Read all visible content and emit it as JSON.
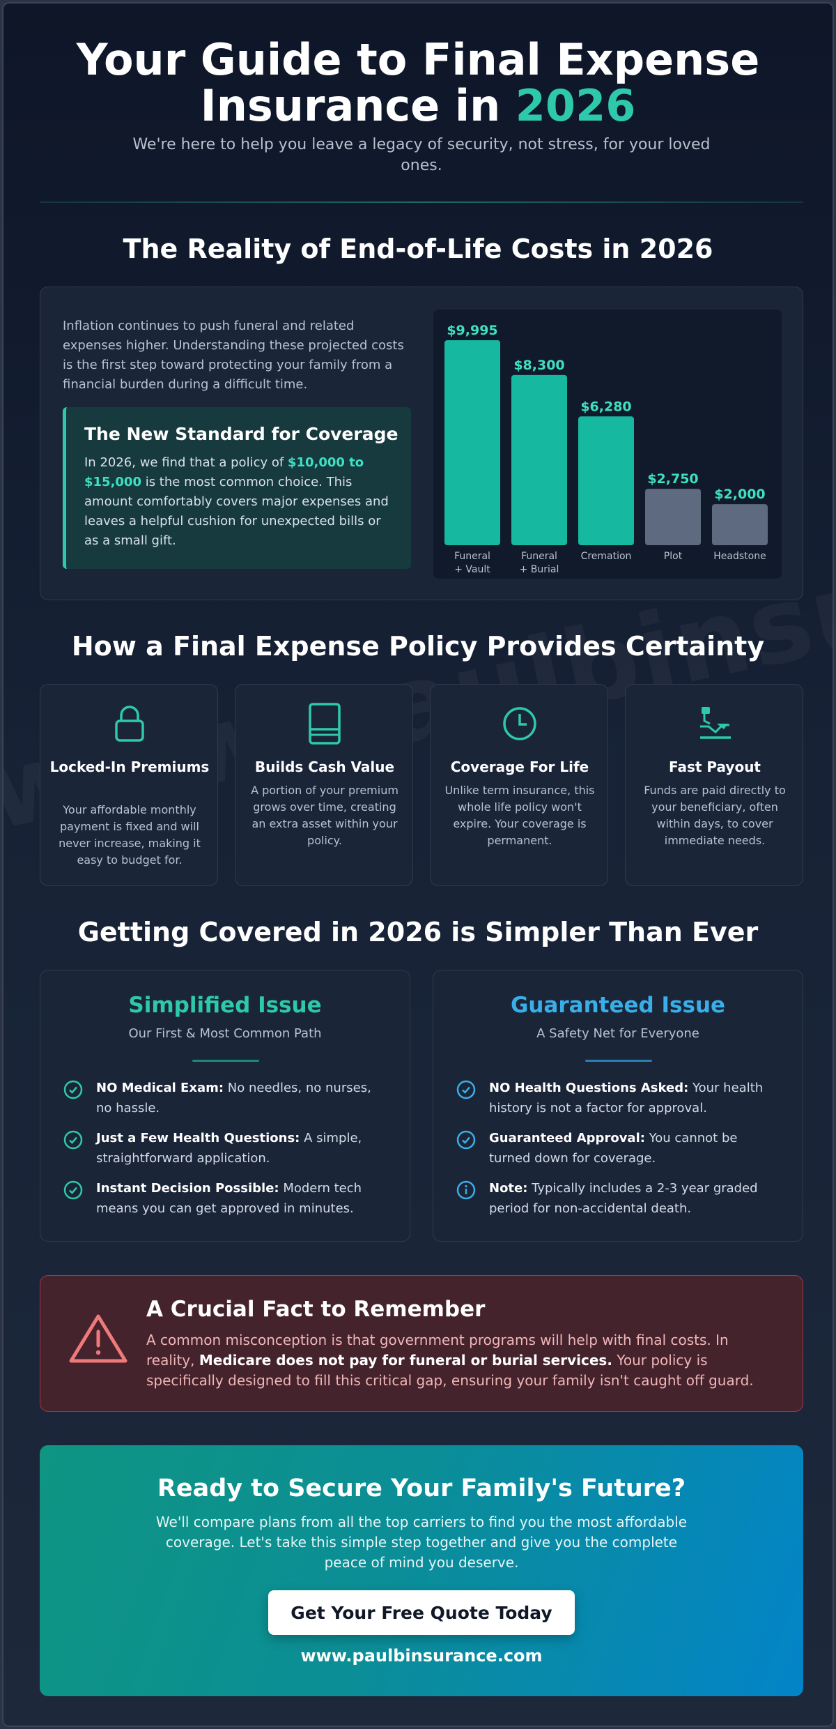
{
  "header": {
    "title_line1": "Your Guide to Final Expense",
    "title_line2_prefix": "Insurance in ",
    "title_year": "2026",
    "subtitle": "We're here to help you leave a legacy of security, not stress, for your loved ones."
  },
  "watermark": "www.paulbinsurance.com",
  "costs": {
    "section_title": "The Reality of End-of-Life Costs in 2026",
    "intro": "Inflation continues to push funeral and related expenses higher. Understanding these projected costs is the first step toward protecting your family from a financial burden during a difficult time.",
    "standard": {
      "title": "The New Standard for Coverage",
      "text_before": "In 2026, we find that a policy of ",
      "highlight": "$10,000 to $15,000",
      "text_after": " is the most common choice. This amount comfortably covers major expenses and leaves a helpful cushion for unexpected bills or as a small gift."
    }
  },
  "chart_data": {
    "type": "bar",
    "categories": [
      "Funeral + Vault",
      "Funeral + Burial",
      "Cremation",
      "Plot",
      "Headstone"
    ],
    "values": [
      9995,
      8300,
      6280,
      2750,
      2000
    ],
    "value_labels": [
      "$9,995",
      "$8,300",
      "$6,280",
      "$2,750",
      "$2,000"
    ],
    "title": "",
    "xlabel": "",
    "ylabel": "",
    "grid": false,
    "colors": [
      "#16b8a0",
      "#16b8a0",
      "#16b8a0",
      "#5e6a80",
      "#5e6a80"
    ],
    "label_color": "#3fe0c2"
  },
  "benefits": {
    "section_title": "How a Final Expense Policy Provides Certainty",
    "items": [
      {
        "icon": "lock-icon",
        "title": "Locked-In Premiums",
        "text": "Your affordable monthly payment is fixed and will never increase, making it easy to budget for."
      },
      {
        "icon": "piggy-bank-icon",
        "title": "Builds Cash Value",
        "text": "A portion of your premium grows over time, creating an extra asset within your policy."
      },
      {
        "icon": "clock-icon",
        "title": "Coverage For Life",
        "text": "Unlike term insurance, this whole life policy won't expire. Your coverage is permanent."
      },
      {
        "icon": "hand-money-icon",
        "title": "Fast Payout",
        "text": "Funds are paid directly to your beneficiary, often within days, to cover immediate needs."
      }
    ]
  },
  "issue": {
    "section_title": "Getting Covered in 2026 is Simpler Than Ever",
    "simplified": {
      "title": "Simplified Issue",
      "subtitle": "Our First & Most Common Path",
      "color": "#2ec9ad",
      "items": [
        {
          "bold": "NO Medical Exam:",
          "text": " No needles, no nurses, no hassle."
        },
        {
          "bold": "Just a Few Health Questions:",
          "text": " A simple, straightforward application."
        },
        {
          "bold": "Instant Decision Possible:",
          "text": " Modern tech means you can get approved in minutes."
        }
      ]
    },
    "guaranteed": {
      "title": "Guaranteed Issue",
      "subtitle": "A Safety Net for Everyone",
      "color": "#3aaee8",
      "items": [
        {
          "bold": "NO Health Questions Asked:",
          "text": " Your health history is not a factor for approval."
        },
        {
          "bold": "Guaranteed Approval:",
          "text": " You cannot be turned down for coverage."
        },
        {
          "bold": "Note:",
          "text": " Typically includes a 2-3 year graded period for non-accidental death."
        }
      ]
    }
  },
  "fact": {
    "title": "A Crucial Fact to Remember",
    "text_before": "A common misconception is that government programs will help with final costs. In reality, ",
    "bold": "Medicare does not pay for funeral or burial services.",
    "text_after": " Your policy is specifically designed to fill this critical gap, ensuring your family isn't caught off guard."
  },
  "cta": {
    "title": "Ready to Secure Your Family's Future?",
    "text": "We'll compare plans from all the top carriers to find you the most affordable coverage. Let's take this simple step together and give you the complete peace of mind you deserve.",
    "button_label": "Get Your Free Quote Today",
    "url": "www.paulbinsurance.com"
  }
}
